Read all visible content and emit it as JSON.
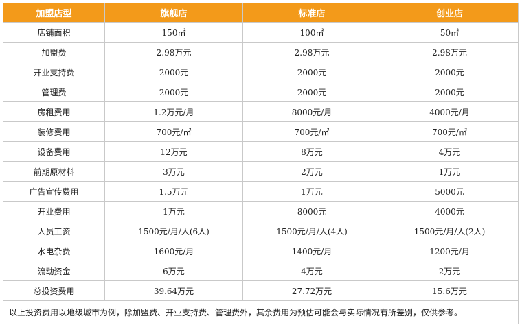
{
  "header": [
    "加盟店型",
    "旗舰店",
    "标准店",
    "创业店"
  ],
  "rows": [
    {
      "label": "店铺面积",
      "values": [
        "150㎡",
        "100㎡",
        "50㎡"
      ]
    },
    {
      "label": "加盟费",
      "values": [
        "2.98万元",
        "2.98万元",
        "2.98万元"
      ]
    },
    {
      "label": "开业支持费",
      "values": [
        "2000元",
        "2000元",
        "2000元"
      ]
    },
    {
      "label": "管理费",
      "values": [
        "2000元",
        "2000元",
        "2000元"
      ]
    },
    {
      "label": "房租费用",
      "values": [
        "1.2万元/月",
        "8000元/月",
        "4000元/月"
      ]
    },
    {
      "label": "装修费用",
      "values": [
        "700元/㎡",
        "700元/㎡",
        "700元/㎡"
      ]
    },
    {
      "label": "设备费用",
      "values": [
        "12万元",
        "8万元",
        "4万元"
      ]
    },
    {
      "label": "前期原材料",
      "values": [
        "3万元",
        "2万元",
        "1万元"
      ]
    },
    {
      "label": "广告宣传费用",
      "values": [
        "1.5万元",
        "1万元",
        "5000元"
      ]
    },
    {
      "label": "开业费用",
      "values": [
        "1万元",
        "8000元",
        "4000元"
      ]
    },
    {
      "label": "人员工资",
      "values": [
        "1500元/月/人(6人)",
        "1500元/月/人(4人)",
        "1500元/月/人(2人)"
      ]
    },
    {
      "label": "水电杂费",
      "values": [
        "1600元/月",
        "1400元/月",
        "1200元/月"
      ]
    },
    {
      "label": "流动资金",
      "values": [
        "6万元",
        "4万元",
        "2万元"
      ]
    },
    {
      "label": "总投资费用",
      "values": [
        "39.64万元",
        "27.72万元",
        "15.6万元"
      ]
    }
  ],
  "footnote": "以上投资费用以地级城市为例，除加盟费、开业支持费、管理费外，其余费用为预估可能会与实际情况有所差别，仅供参考。",
  "colors": {
    "header_bg": "#f39a1a",
    "header_text": "#ffffff",
    "border": "#c9c9c9"
  }
}
